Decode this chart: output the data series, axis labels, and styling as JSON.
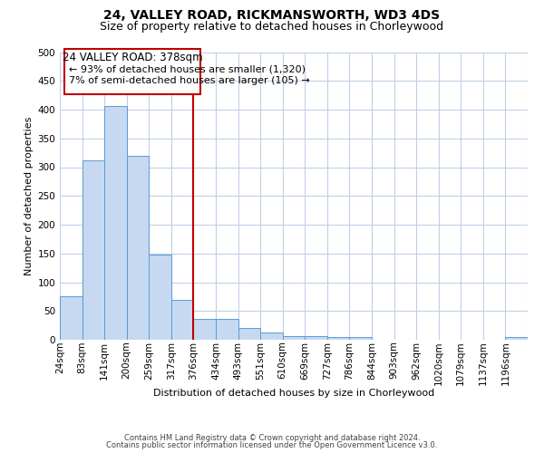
{
  "title": "24, VALLEY ROAD, RICKMANSWORTH, WD3 4DS",
  "subtitle": "Size of property relative to detached houses in Chorleywood",
  "xlabel": "Distribution of detached houses by size in Chorleywood",
  "ylabel": "Number of detached properties",
  "footer_line1": "Contains HM Land Registry data © Crown copyright and database right 2024.",
  "footer_line2": "Contains public sector information licensed under the Open Government Licence v3.0.",
  "bin_labels": [
    "24sqm",
    "83sqm",
    "141sqm",
    "200sqm",
    "259sqm",
    "317sqm",
    "376sqm",
    "434sqm",
    "493sqm",
    "551sqm",
    "610sqm",
    "669sqm",
    "727sqm",
    "786sqm",
    "844sqm",
    "903sqm",
    "962sqm",
    "1020sqm",
    "1079sqm",
    "1137sqm",
    "1196sqm"
  ],
  "bar_heights": [
    75,
    312,
    407,
    320,
    148,
    70,
    37,
    37,
    20,
    12,
    6,
    6,
    5,
    5,
    0,
    0,
    0,
    0,
    0,
    0,
    5
  ],
  "bar_color": "#c6d9f0",
  "bar_edge_color": "#5b9bd5",
  "ylim": [
    0,
    500
  ],
  "yticks": [
    0,
    50,
    100,
    150,
    200,
    250,
    300,
    350,
    400,
    450,
    500
  ],
  "vline_x": 6,
  "vline_color": "#c00000",
  "annotation_title": "24 VALLEY ROAD: 378sqm",
  "annotation_line1": "← 93% of detached houses are smaller (1,320)",
  "annotation_line2": "7% of semi-detached houses are larger (105) →",
  "annotation_box_color": "#c00000",
  "background_color": "#ffffff",
  "grid_color": "#c0d0e8",
  "title_fontsize": 10,
  "subtitle_fontsize": 9,
  "xlabel_fontsize": 8,
  "ylabel_fontsize": 8,
  "tick_fontsize": 7.5,
  "footer_fontsize": 6,
  "annot_title_fontsize": 8.5,
  "annot_text_fontsize": 8
}
